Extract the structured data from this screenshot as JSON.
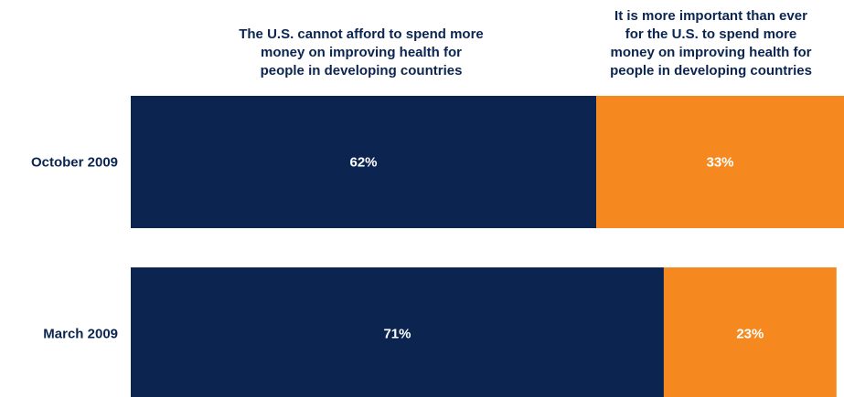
{
  "chart_data": {
    "type": "bar",
    "orientation": "horizontal",
    "stacked": true,
    "categories": [
      "October 2009",
      "March 2009"
    ],
    "series": [
      {
        "name": "The U.S. cannot afford to spend more\nmoney on improving health for\npeople in developing countries",
        "values": [
          62,
          71
        ],
        "labels": [
          "62%",
          "71%"
        ],
        "color": "#0b2550"
      },
      {
        "name": "It is more important than ever\nfor the U.S. to spend more\nmoney on improving health for\npeople in developing countries",
        "values": [
          33,
          23
        ],
        "labels": [
          "33%",
          "23%"
        ],
        "color": "#f5891f"
      }
    ],
    "xlim": [
      0,
      95
    ],
    "grid": false,
    "legend": "top",
    "title": "",
    "xlabel": "",
    "ylabel": ""
  },
  "colors": {
    "category_label": "#0b2550",
    "value_label": "#ffffff"
  }
}
